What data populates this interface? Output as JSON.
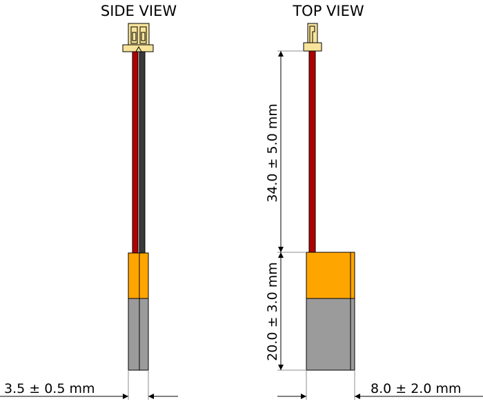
{
  "views": {
    "side": {
      "title": "SIDE VIEW"
    },
    "top": {
      "title": "TOP VIEW"
    }
  },
  "dimensions": {
    "thickness": "3.5 ± 0.5 mm",
    "lead_length": "34.0 ± 5.0 mm",
    "body_length": "20.0 ± 3.0 mm",
    "width": "8.0 ± 2.0 mm"
  },
  "colors": {
    "connector": "#f7e39a",
    "red_wire": "#b00000",
    "black_wire": "#3a3a3a",
    "pcm_wrap": "#ffa500",
    "cell_body": "#9b9b9b",
    "outline": "#000000",
    "extension_line": "#8c8c8c"
  }
}
